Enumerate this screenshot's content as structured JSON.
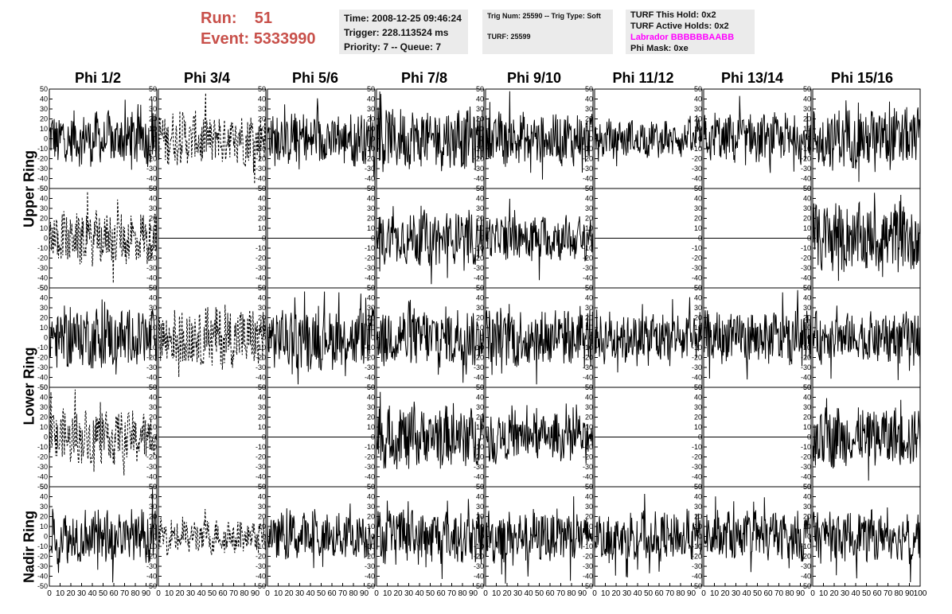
{
  "run_panel": {
    "run_label": "Run:",
    "run_value": "51",
    "event_label": "Event:",
    "event_value": "5333990"
  },
  "time_panel": {
    "time": "Time: 2008-12-25 09:46:24",
    "trigger": "Trigger: 228.113524 ms",
    "priority": "Priority: 7 -- Queue: 7"
  },
  "trig_panel": {
    "trig_line": "Trig Num: 25590 -- Trig Type: Soft",
    "turf_line": "TURF: 25599"
  },
  "turf_panel": {
    "this_hold": "TURF This Hold: 0x2",
    "active_holds": "TURF Active Holds: 0x2",
    "labrador": "Labrador BBBBBBAABB",
    "phi_mask": "Phi Mask: 0xe"
  },
  "phi_headers": [
    "Phi 1/2",
    "Phi 3/4",
    "Phi 5/6",
    "Phi 7/8",
    "Phi 9/10",
    "Phi 11/12",
    "Phi 13/14",
    "Phi 15/16"
  ],
  "ring_labels": [
    "Upper Ring",
    "Lower Ring",
    "Nadir Ring"
  ],
  "colors": {
    "run_text": "#c8504a",
    "labrador": "#ff00ff",
    "panel_bg": "#ebebeb"
  },
  "chart_data": {
    "type": "line",
    "title": "",
    "xlim": [
      0,
      100
    ],
    "ylim": [
      -50,
      50
    ],
    "y_ticks": [
      50,
      40,
      30,
      20,
      10,
      0,
      -10,
      -20,
      -30,
      -40,
      -50
    ],
    "x_ticks": [
      0,
      10,
      20,
      30,
      40,
      50,
      60,
      70,
      80,
      90,
      100
    ],
    "rows": 5,
    "cols": 8,
    "panels": [
      [
        "solid",
        "dashed",
        "solid",
        "solid",
        "solid",
        "solid",
        "solid",
        "solid"
      ],
      [
        "dashed",
        "flat",
        "flat",
        "solid",
        "solid",
        "flat",
        "flat",
        "solid"
      ],
      [
        "solid",
        "dashed",
        "solid",
        "solid",
        "solid",
        "solid",
        "solid",
        "solid"
      ],
      [
        "dashed",
        "flat",
        "flat",
        "solid",
        "solid",
        "flat",
        "flat",
        "solid"
      ],
      [
        "solid",
        "dashed",
        "solid",
        "solid",
        "solid",
        "solid",
        "solid",
        "solid"
      ]
    ],
    "amplitudes": [
      [
        30,
        30,
        30,
        35,
        30,
        20,
        28,
        35
      ],
      [
        30,
        0,
        0,
        30,
        25,
        0,
        0,
        40
      ],
      [
        35,
        35,
        35,
        35,
        35,
        30,
        30,
        28
      ],
      [
        30,
        0,
        0,
        35,
        25,
        0,
        0,
        35
      ],
      [
        30,
        18,
        25,
        30,
        30,
        28,
        28,
        28
      ]
    ]
  }
}
